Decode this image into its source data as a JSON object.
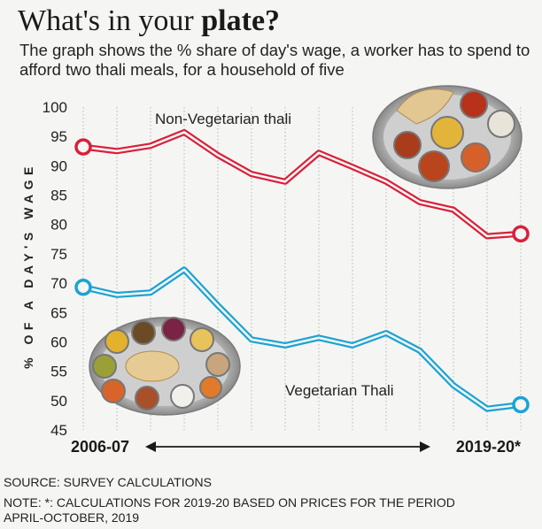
{
  "header": {
    "title_regular": "What's in your ",
    "title_bold": "plate?",
    "subtitle": "The graph shows the % share of day's wage, a worker has to spend to afford two thali meals, for a household of five"
  },
  "chart_data": {
    "type": "line",
    "ylabel": "% OF A DAY'S WAGE",
    "ylim": [
      45,
      100
    ],
    "yticks": [
      45,
      50,
      55,
      60,
      65,
      70,
      75,
      80,
      85,
      90,
      95,
      100
    ],
    "x_start_label": "2006-07",
    "x_end_label": "2019-20*",
    "grid": "vertical-dotted",
    "x": [
      0,
      1,
      2,
      3,
      4,
      5,
      6,
      7,
      8,
      9,
      10,
      11,
      12,
      13
    ],
    "series": [
      {
        "name": "Non-Vegetarian thali",
        "color": "#d8203a",
        "values": [
          93.2,
          92.5,
          93.4,
          95.7,
          91.8,
          88.6,
          87.3,
          92.2,
          89.8,
          87.3,
          83.8,
          82.5,
          78.0,
          78.4
        ]
      },
      {
        "name": "Vegetarian Thali",
        "color": "#1aa3d4",
        "values": [
          69.3,
          68.0,
          68.4,
          72.3,
          66.2,
          60.4,
          59.4,
          60.7,
          59.4,
          61.5,
          58.5,
          52.6,
          48.6,
          49.3
        ]
      }
    ]
  },
  "footer": {
    "source": "SOURCE: SURVEY CALCULATIONS",
    "note_line1": "NOTE: *: CALCULATIONS FOR 2019-20 BASED ON PRICES FOR THE PERIOD",
    "note_line2": "APRIL-OCTOBER, 2019"
  }
}
